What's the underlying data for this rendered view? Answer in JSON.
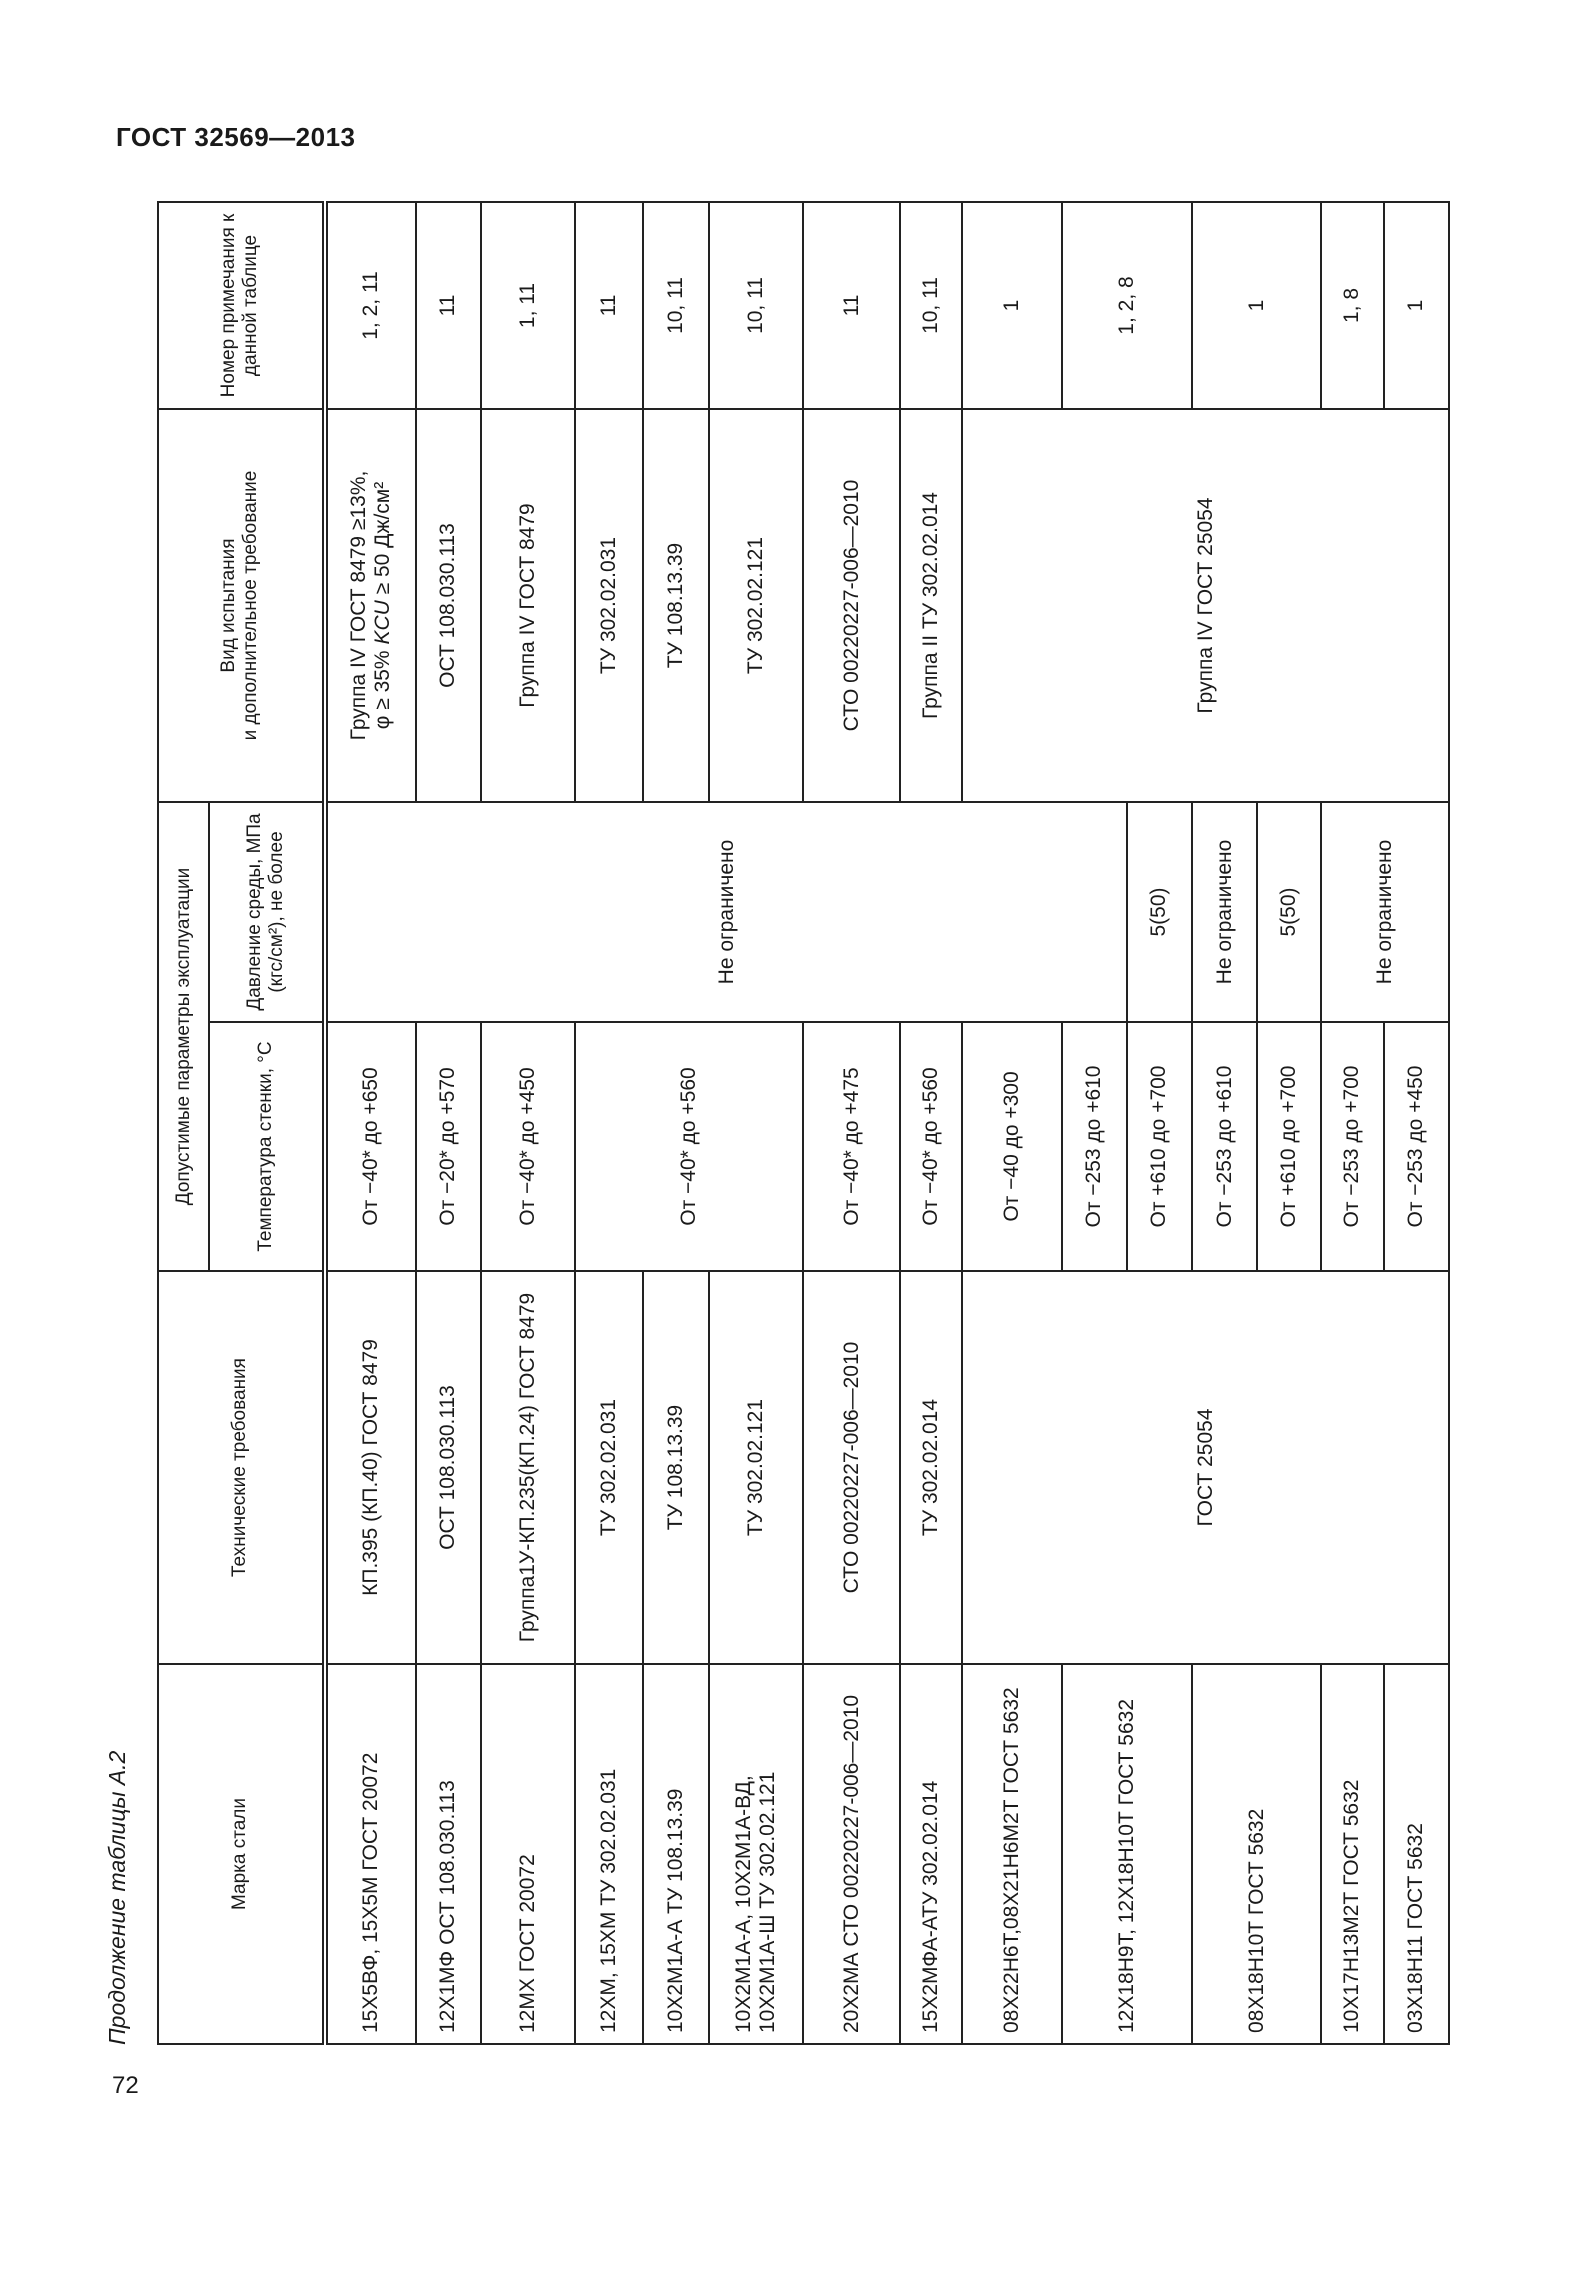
{
  "header": {
    "doc_title": "ГОСТ 32569—2013"
  },
  "caption": "Продолжение таблицы А.2",
  "page_number": "72",
  "table": {
    "columns": {
      "grade": "Марка стали",
      "tech": "Технические требования",
      "params_group": "Допустимые параметры эксплуатации",
      "temp": "Температура стенки, °С",
      "pressure": "Давление среды, МПа (кгс/см²), не более",
      "test_line1": "Вид испытания",
      "test_line2": "и дополнительное требование",
      "note": "Номер примечания к данной таблице"
    },
    "grades": [
      "15Х5ВФ, 15Х5М ГОСТ 20072",
      "12Х1МФ ОСТ 108.030.113",
      "12МХ ГОСТ 20072",
      "12ХМ, 15ХМ ТУ 302.02.031",
      "10Х2М1А-А ТУ 108.13.39",
      "10Х2М1А-А, 10Х2М1А-ВД, 10Х2М1А-Ш ТУ 302.02.121",
      "20Х2МА СТО 00220227-006—2010",
      "15Х2МФА-АТУ 302.02.014",
      "08Х22Н6Т,08Х21Н6М2Т ГОСТ 5632",
      "12Х18Н9Т, 12Х18Н10Т ГОСТ 5632",
      "08Х18Н10Т ГОСТ 5632",
      "10Х17Н13М2Т ГОСТ 5632",
      "03Х18Н11 ГОСТ 5632"
    ],
    "tech": [
      "КП.395 (КП.40) ГОСТ 8479",
      "ОСТ 108.030.113",
      "Группа1У-КП.235(КП.24) ГОСТ 8479",
      "ТУ 302.02.031",
      "ТУ 108.13.39",
      "ТУ 302.02.121",
      "СТО 00220227-006—2010",
      "ТУ 302.02.014",
      "ГОСТ 25054"
    ],
    "temps": [
      "От −40* до +650",
      "От −20* до +570",
      "От −40* до +450",
      "От −40* до +560",
      "От −40* до +475",
      "От −40* до +560",
      "От −40 до +300",
      "От −253 до +610",
      "От +610 до +700",
      "От −253 до +610",
      "От +610 до +700",
      "От −253 до +700",
      "От −253 до +450"
    ],
    "pressures": [
      "Не ограничено",
      "5(50)",
      "Не ограничено",
      "5(50)",
      "Не ограничено"
    ],
    "tests": {
      "row1_line1": "Группа IV ГОСТ 8479 ≥13%,",
      "row1_line2a": "φ ≥ 35% ",
      "row1_line2b": "KCU",
      "row1_line2c": " ≥ 50 Дж/см²",
      "others": [
        "ОСТ 108.030.113",
        "Группа IV ГОСТ 8479",
        "ТУ 302.02.031",
        "ТУ 108.13.39",
        "ТУ 302.02.121",
        "СТО 00220227-006—2010",
        "Группа II ТУ 302.02.014",
        "Группа IV ГОСТ 25054"
      ]
    },
    "notes": [
      "1, 2, 11",
      "11",
      "1, 11",
      "11",
      "10, 11",
      "10, 11",
      "11",
      "10, 11",
      "1",
      "1, 2, 8",
      "1",
      "1, 8",
      "1"
    ]
  }
}
